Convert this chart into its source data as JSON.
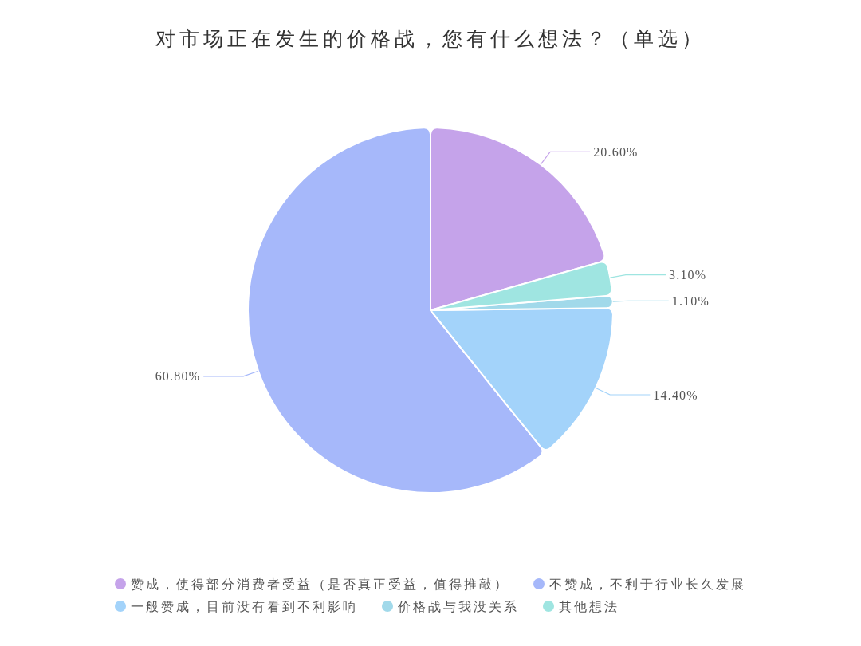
{
  "chart_data": {
    "type": "pie",
    "title": "对市场正在发生的价格战，您有什么想法？（单选）",
    "categories": [
      "赞成，使得部分消费者受益（是否真正受益，值得推敲）",
      "不赞成，不利于行业长久发展",
      "一般赞成，目前没有看到不利影响",
      "价格战与我没关系",
      "其他想法"
    ],
    "values": [
      20.6,
      60.8,
      14.4,
      1.1,
      3.1
    ],
    "colors": [
      "#c5a3ea",
      "#a6b8fa",
      "#a3d3fa",
      "#a1d9ea",
      "#9fe5e1"
    ],
    "value_labels": [
      "20.60%",
      "60.80%",
      "14.40%",
      "1.10%",
      "3.10%"
    ],
    "legend": "bottom"
  }
}
